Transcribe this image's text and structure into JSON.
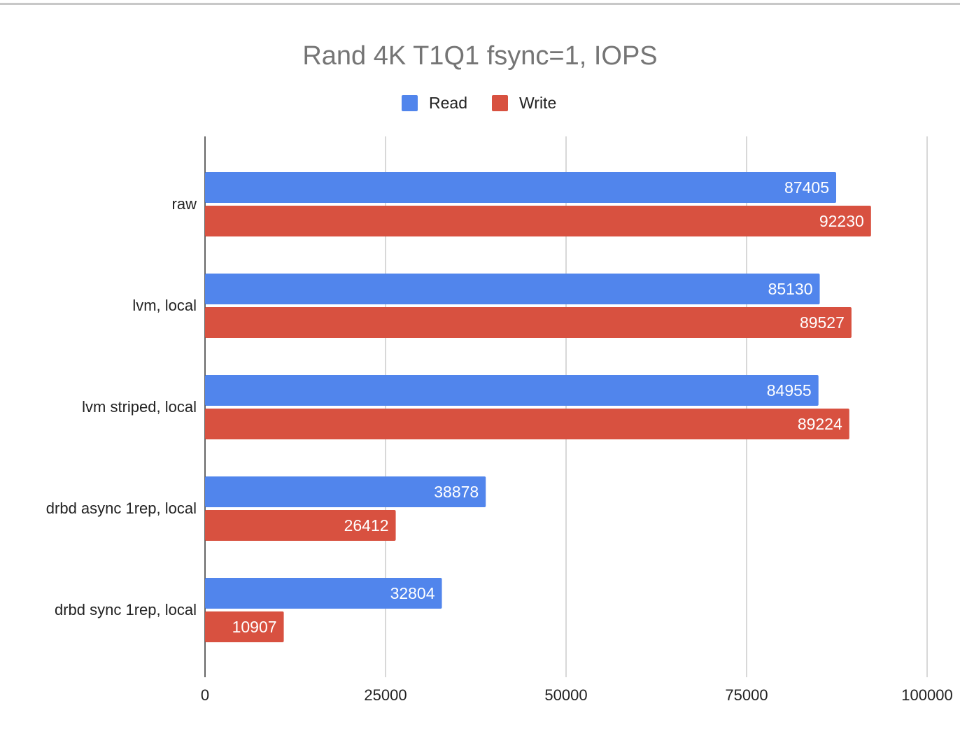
{
  "chart_data": {
    "type": "bar",
    "orientation": "horizontal",
    "title": "Rand 4K T1Q1 fsync=1, IOPS",
    "xlabel": "",
    "ylabel": "",
    "categories": [
      "raw",
      "lvm, local",
      "lvm striped, local",
      "drbd async 1rep, local",
      "drbd sync 1rep, local"
    ],
    "series": [
      {
        "name": "Read",
        "color": "#5185EC",
        "values": [
          87405,
          85130,
          84955,
          38878,
          32804
        ]
      },
      {
        "name": "Write",
        "color": "#D85140",
        "values": [
          92230,
          89527,
          89224,
          26412,
          10907
        ]
      }
    ],
    "xlim": [
      0,
      100000
    ],
    "xticks": [
      "0",
      "25000",
      "50000",
      "75000",
      "100000"
    ],
    "grid": true,
    "legend": "top",
    "data_labels": true
  }
}
